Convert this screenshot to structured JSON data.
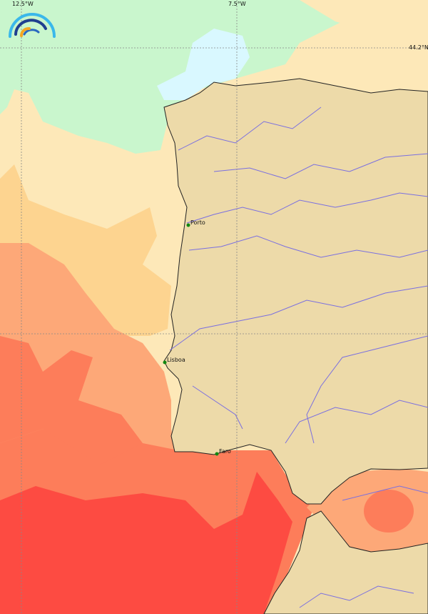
{
  "map": {
    "grid_labels": {
      "lon_west": "12.5°W",
      "lon_east": "7.5°W",
      "lat": "44.2°N"
    },
    "cities": [
      {
        "name": "Porto"
      },
      {
        "name": "Lisboa"
      },
      {
        "name": "Faro"
      }
    ],
    "colors": {
      "land": "#eddaa9",
      "coastline": "#222222",
      "rivers": "#7a6fe0",
      "city_marker": "#118811",
      "sea_scale": [
        "#d9f8ff",
        "#c9f6cd",
        "#fde8b8",
        "#fdd490",
        "#fda878",
        "#fd7d5a",
        "#fd4b42"
      ]
    },
    "logo": "rainbow-arcs-logo"
  }
}
